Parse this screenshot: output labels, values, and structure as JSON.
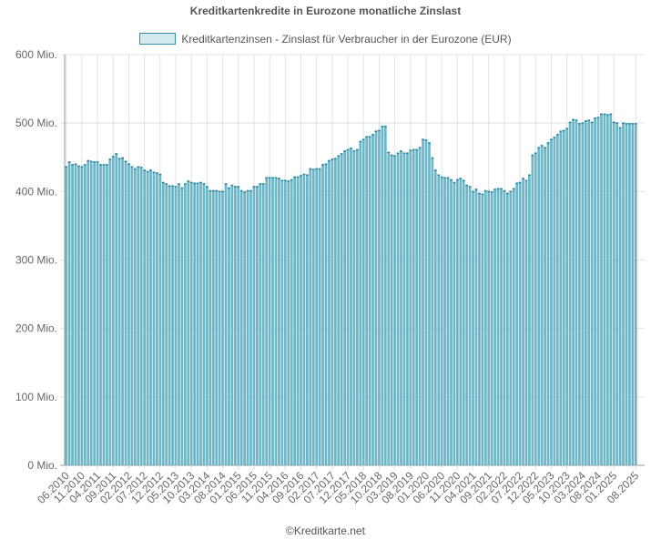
{
  "chart_data": {
    "type": "bar",
    "title": "Kreditkartenkredite in Eurozone monatliche Zinslast",
    "x_start": "06.2010",
    "x_end": "08.2025",
    "frequency": "monthly",
    "tick_labels": [
      "06.2010",
      "11.2010",
      "04.2011",
      "09.2011",
      "02.2012",
      "07.2012",
      "12.2012",
      "05.2013",
      "10.2013",
      "03.2014",
      "08.2014",
      "01.2015",
      "06.2015",
      "11.2015",
      "04.2016",
      "09.2016",
      "02.2017",
      "07.2017",
      "12.2017",
      "05.2018",
      "10.2018",
      "03.2019",
      "08.2019",
      "01.2020",
      "06.2020",
      "11.2020",
      "04.2021",
      "09.2021",
      "02.2022",
      "07.2022",
      "12.2022",
      "05.2023",
      "10.2023",
      "03.2024",
      "08.2024",
      "01.2025",
      "08.2025"
    ],
    "y_ticks": [
      "0 Mio.",
      "100 Mio.",
      "200 Mio.",
      "300 Mio.",
      "400 Mio.",
      "500 Mio.",
      "600 Mio."
    ],
    "ylim": [
      0,
      600
    ],
    "y_unit": "Mio.",
    "grid": true,
    "legend_placement": "top",
    "series": [
      {
        "name": "Kreditkartenzinsen - Zinslast für Verbraucher in der Eurozone (EUR)",
        "color": "#6db6c7",
        "border_color": "#2b87a0",
        "values": [
          437,
          444,
          440,
          441,
          438,
          437,
          440,
          446,
          445,
          444,
          444,
          440,
          440,
          440,
          448,
          452,
          456,
          449,
          450,
          445,
          441,
          437,
          434,
          437,
          436,
          432,
          430,
          432,
          429,
          428,
          426,
          414,
          412,
          409,
          409,
          408,
          412,
          406,
          412,
          416,
          414,
          413,
          413,
          414,
          412,
          408,
          402,
          402,
          402,
          401,
          401,
          412,
          406,
          410,
          408,
          408,
          402,
          400,
          402,
          402,
          408,
          408,
          412,
          412,
          421,
          421,
          421,
          421,
          420,
          417,
          417,
          416,
          418,
          422,
          422,
          424,
          426,
          425,
          434,
          433,
          434,
          434,
          440,
          441,
          446,
          448,
          449,
          453,
          456,
          460,
          462,
          464,
          460,
          462,
          474,
          477,
          481,
          481,
          484,
          489,
          490,
          496,
          496,
          458,
          454,
          453,
          457,
          460,
          457,
          457,
          461,
          462,
          462,
          465,
          477,
          476,
          472,
          450,
          432,
          425,
          422,
          421,
          421,
          418,
          414,
          418,
          420,
          417,
          410,
          408,
          401,
          404,
          398,
          397,
          402,
          401,
          400,
          404,
          405,
          405,
          402,
          398,
          401,
          405,
          413,
          414,
          420,
          417,
          425,
          454,
          457,
          465,
          468,
          465,
          472,
          477,
          480,
          484,
          489,
          490,
          493,
          502,
          506,
          505,
          500,
          501,
          504,
          505,
          502,
          508,
          509,
          514,
          514,
          513,
          514,
          502,
          501,
          494,
          501,
          500,
          500,
          500,
          500
        ]
      }
    ]
  },
  "footer": "©Kreditkarte.net"
}
